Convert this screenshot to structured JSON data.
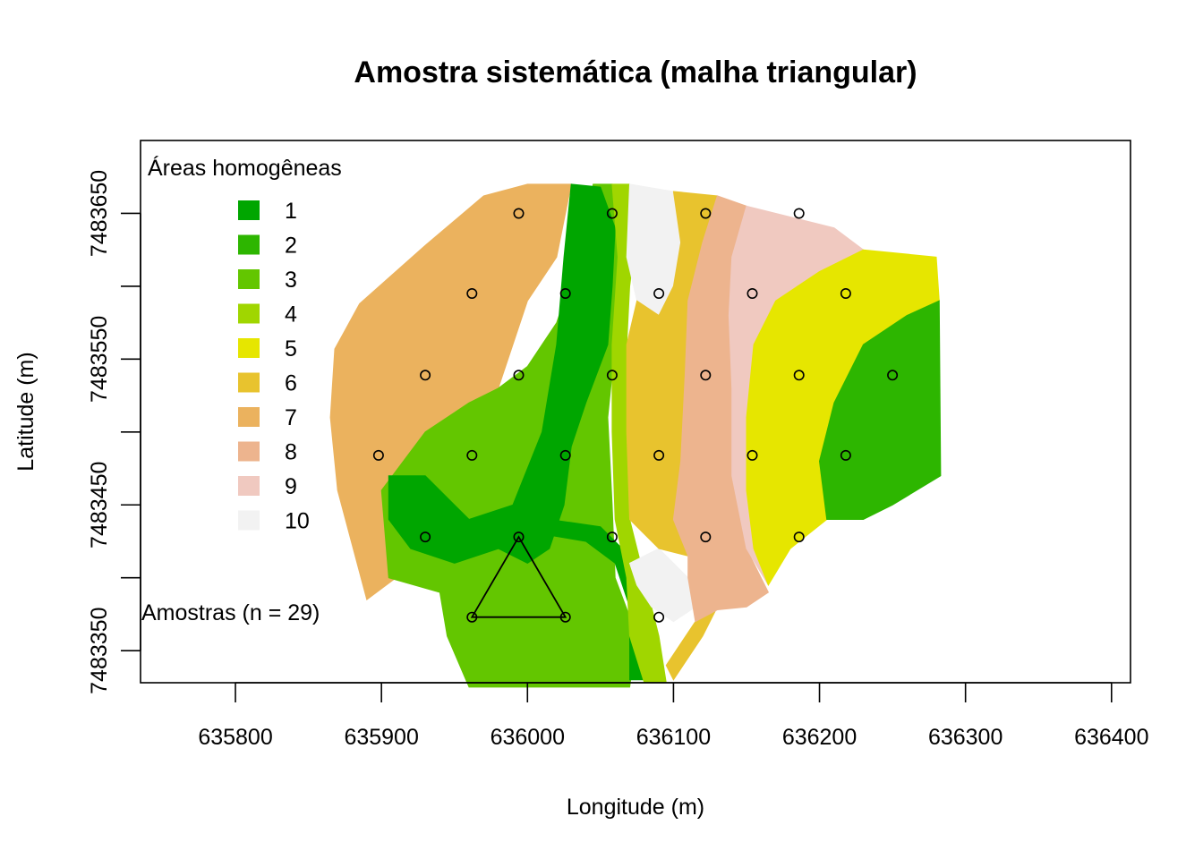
{
  "title": "Amostra sistemática (malha triangular)",
  "xlabel": "Longitude (m)",
  "ylabel": "Latitude (m)",
  "legend": {
    "title": "Áreas homogêneas",
    "items": [
      {
        "label": "1",
        "color": "#00A600"
      },
      {
        "label": "2",
        "color": "#2DB600"
      },
      {
        "label": "3",
        "color": "#63C600"
      },
      {
        "label": "4",
        "color": "#A0D600"
      },
      {
        "label": "5",
        "color": "#E6E600"
      },
      {
        "label": "6",
        "color": "#E8C32E"
      },
      {
        "label": "7",
        "color": "#EBB25E"
      },
      {
        "label": "8",
        "color": "#EDB48E"
      },
      {
        "label": "9",
        "color": "#F0C9C0"
      },
      {
        "label": "10",
        "color": "#F2F2F2"
      }
    ]
  },
  "samples_label": "Amostras (n = 29)",
  "chart_data": {
    "type": "scatter",
    "xlim": [
      635735,
      636413
    ],
    "ylim": [
      7483328,
      7483700
    ],
    "x_ticks": [
      635800,
      635900,
      636000,
      636100,
      636200,
      636300,
      636400
    ],
    "x_tick_labels": [
      "635800",
      "635900",
      "636000",
      "636100",
      "636200",
      "636300",
      "636400"
    ],
    "y_ticks": [
      7483350,
      7483400,
      7483450,
      7483500,
      7483550,
      7483600,
      7483650
    ],
    "y_tick_labels": [
      "7483350",
      "",
      "7483450",
      "",
      "7483550",
      "",
      "7483650"
    ],
    "samples": [
      {
        "x": 635994,
        "y": 7483650
      },
      {
        "x": 636058,
        "y": 7483650
      },
      {
        "x": 636122,
        "y": 7483650
      },
      {
        "x": 636186,
        "y": 7483650
      },
      {
        "x": 635962,
        "y": 7483595
      },
      {
        "x": 636026,
        "y": 7483595
      },
      {
        "x": 636090,
        "y": 7483595
      },
      {
        "x": 636154,
        "y": 7483595
      },
      {
        "x": 636218,
        "y": 7483595
      },
      {
        "x": 635930,
        "y": 7483539
      },
      {
        "x": 635994,
        "y": 7483539
      },
      {
        "x": 636058,
        "y": 7483539
      },
      {
        "x": 636122,
        "y": 7483539
      },
      {
        "x": 636186,
        "y": 7483539
      },
      {
        "x": 636250,
        "y": 7483539
      },
      {
        "x": 635898,
        "y": 7483484
      },
      {
        "x": 635962,
        "y": 7483484
      },
      {
        "x": 636026,
        "y": 7483484
      },
      {
        "x": 636090,
        "y": 7483484
      },
      {
        "x": 636154,
        "y": 7483484
      },
      {
        "x": 636218,
        "y": 7483484
      },
      {
        "x": 635930,
        "y": 7483428
      },
      {
        "x": 635994,
        "y": 7483428
      },
      {
        "x": 636058,
        "y": 7483428
      },
      {
        "x": 636122,
        "y": 7483428
      },
      {
        "x": 636186,
        "y": 7483428
      },
      {
        "x": 635962,
        "y": 7483373
      },
      {
        "x": 636026,
        "y": 7483373
      },
      {
        "x": 636090,
        "y": 7483373
      }
    ],
    "triangle": [
      {
        "x": 635994,
        "y": 7483428
      },
      {
        "x": 635962,
        "y": 7483373
      },
      {
        "x": 636026,
        "y": 7483373
      }
    ],
    "zones": [
      {
        "zone": 7,
        "polygon": [
          [
            635868,
            7483557
          ],
          [
            635885,
            7483588
          ],
          [
            635930,
            7483628
          ],
          [
            635970,
            7483662
          ],
          [
            636000,
            7483670
          ],
          [
            636030,
            7483670
          ],
          [
            636020,
            7483620
          ],
          [
            636000,
            7483590
          ],
          [
            635990,
            7483560
          ],
          [
            635980,
            7483530
          ],
          [
            635950,
            7483500
          ],
          [
            635920,
            7483440
          ],
          [
            635910,
            7483400
          ],
          [
            635890,
            7483385
          ],
          [
            635870,
            7483460
          ],
          [
            635865,
            7483510
          ]
        ]
      },
      {
        "zone": 3,
        "polygon": [
          [
            635900,
            7483460
          ],
          [
            635905,
            7483400
          ],
          [
            635940,
            7483390
          ],
          [
            635945,
            7483360
          ],
          [
            635960,
            7483325
          ],
          [
            636070,
            7483325
          ],
          [
            636075,
            7483360
          ],
          [
            636060,
            7483400
          ],
          [
            636058,
            7483450
          ],
          [
            636055,
            7483510
          ],
          [
            636062,
            7483580
          ],
          [
            636065,
            7483630
          ],
          [
            636058,
            7483670
          ],
          [
            636045,
            7483670
          ],
          [
            636035,
            7483620
          ],
          [
            636020,
            7483575
          ],
          [
            636000,
            7483545
          ],
          [
            635980,
            7483530
          ],
          [
            635960,
            7483520
          ],
          [
            635930,
            7483500
          ]
        ]
      },
      {
        "zone": 1,
        "polygon": [
          [
            636030,
            7483670
          ],
          [
            636050,
            7483668
          ],
          [
            636060,
            7483640
          ],
          [
            636058,
            7483600
          ],
          [
            636055,
            7483560
          ],
          [
            636040,
            7483520
          ],
          [
            636030,
            7483490
          ],
          [
            636025,
            7483450
          ],
          [
            636015,
            7483420
          ],
          [
            636000,
            7483410
          ],
          [
            635980,
            7483420
          ],
          [
            635950,
            7483410
          ],
          [
            635920,
            7483420
          ],
          [
            635905,
            7483440
          ],
          [
            635905,
            7483470
          ],
          [
            635930,
            7483470
          ],
          [
            635960,
            7483440
          ],
          [
            635990,
            7483450
          ],
          [
            636010,
            7483500
          ],
          [
            636020,
            7483560
          ],
          [
            636025,
            7483620
          ]
        ]
      },
      {
        "zone": 1,
        "polygon": [
          [
            636010,
            7483430
          ],
          [
            636040,
            7483425
          ],
          [
            636060,
            7483410
          ],
          [
            636070,
            7483380
          ],
          [
            636070,
            7483330
          ],
          [
            636080,
            7483330
          ],
          [
            636085,
            7483370
          ],
          [
            636075,
            7483410
          ],
          [
            636050,
            7483435
          ],
          [
            636015,
            7483440
          ]
        ]
      },
      {
        "zone": 4,
        "polygon": [
          [
            636058,
            7483670
          ],
          [
            636070,
            7483670
          ],
          [
            636075,
            7483640
          ],
          [
            636070,
            7483600
          ],
          [
            636068,
            7483560
          ],
          [
            636070,
            7483500
          ],
          [
            636070,
            7483440
          ],
          [
            636080,
            7483400
          ],
          [
            636090,
            7483360
          ],
          [
            636095,
            7483328
          ],
          [
            636080,
            7483328
          ],
          [
            636070,
            7483360
          ],
          [
            636068,
            7483400
          ],
          [
            636060,
            7483440
          ],
          [
            636058,
            7483500
          ],
          [
            636058,
            7483560
          ],
          [
            636062,
            7483620
          ]
        ]
      },
      {
        "zone": 10,
        "polygon": [
          [
            636070,
            7483670
          ],
          [
            636100,
            7483665
          ],
          [
            636105,
            7483630
          ],
          [
            636100,
            7483600
          ],
          [
            636090,
            7483580
          ],
          [
            636075,
            7483590
          ],
          [
            636068,
            7483620
          ]
        ]
      },
      {
        "zone": 10,
        "polygon": [
          [
            636070,
            7483410
          ],
          [
            636090,
            7483420
          ],
          [
            636110,
            7483400
          ],
          [
            636115,
            7483380
          ],
          [
            636100,
            7483370
          ],
          [
            636085,
            7483380
          ],
          [
            636075,
            7483395
          ]
        ]
      },
      {
        "zone": 6,
        "polygon": [
          [
            636100,
            7483665
          ],
          [
            636130,
            7483662
          ],
          [
            636120,
            7483630
          ],
          [
            636110,
            7483590
          ],
          [
            636108,
            7483540
          ],
          [
            636105,
            7483480
          ],
          [
            636100,
            7483440
          ],
          [
            636110,
            7483415
          ],
          [
            636090,
            7483420
          ],
          [
            636070,
            7483440
          ],
          [
            636068,
            7483500
          ],
          [
            636068,
            7483560
          ],
          [
            636075,
            7483590
          ],
          [
            636090,
            7483580
          ],
          [
            636100,
            7483600
          ],
          [
            636105,
            7483630
          ]
        ]
      },
      {
        "zone": 6,
        "polygon": [
          [
            636095,
            7483340
          ],
          [
            636115,
            7483370
          ],
          [
            636130,
            7483380
          ],
          [
            636120,
            7483360
          ],
          [
            636100,
            7483330
          ]
        ]
      },
      {
        "zone": 8,
        "polygon": [
          [
            636130,
            7483662
          ],
          [
            636150,
            7483655
          ],
          [
            636140,
            7483620
          ],
          [
            636138,
            7483580
          ],
          [
            636140,
            7483530
          ],
          [
            636140,
            7483470
          ],
          [
            636150,
            7483420
          ],
          [
            636165,
            7483390
          ],
          [
            636150,
            7483380
          ],
          [
            636130,
            7483378
          ],
          [
            636115,
            7483370
          ],
          [
            636110,
            7483400
          ],
          [
            636110,
            7483415
          ],
          [
            636100,
            7483440
          ],
          [
            636105,
            7483480
          ],
          [
            636108,
            7483540
          ],
          [
            636110,
            7483590
          ],
          [
            636120,
            7483630
          ]
        ]
      },
      {
        "zone": 9,
        "polygon": [
          [
            636150,
            7483655
          ],
          [
            636210,
            7483640
          ],
          [
            636230,
            7483625
          ],
          [
            636200,
            7483610
          ],
          [
            636170,
            7483590
          ],
          [
            636155,
            7483560
          ],
          [
            636150,
            7483510
          ],
          [
            636150,
            7483460
          ],
          [
            636155,
            7483420
          ],
          [
            636165,
            7483395
          ],
          [
            636150,
            7483420
          ],
          [
            636140,
            7483470
          ],
          [
            636140,
            7483530
          ],
          [
            636138,
            7483580
          ],
          [
            636140,
            7483620
          ]
        ]
      },
      {
        "zone": 5,
        "polygon": [
          [
            636230,
            7483625
          ],
          [
            636280,
            7483620
          ],
          [
            636282,
            7483590
          ],
          [
            636260,
            7483580
          ],
          [
            636230,
            7483560
          ],
          [
            636210,
            7483520
          ],
          [
            636200,
            7483480
          ],
          [
            636205,
            7483440
          ],
          [
            636180,
            7483420
          ],
          [
            636165,
            7483395
          ],
          [
            636155,
            7483420
          ],
          [
            636150,
            7483460
          ],
          [
            636150,
            7483510
          ],
          [
            636155,
            7483560
          ],
          [
            636170,
            7483590
          ],
          [
            636200,
            7483610
          ]
        ]
      },
      {
        "zone": 2,
        "polygon": [
          [
            636282,
            7483590
          ],
          [
            636283,
            7483470
          ],
          [
            636250,
            7483450
          ],
          [
            636230,
            7483440
          ],
          [
            636205,
            7483440
          ],
          [
            636200,
            7483480
          ],
          [
            636210,
            7483520
          ],
          [
            636230,
            7483560
          ],
          [
            636260,
            7483580
          ]
        ]
      }
    ]
  }
}
